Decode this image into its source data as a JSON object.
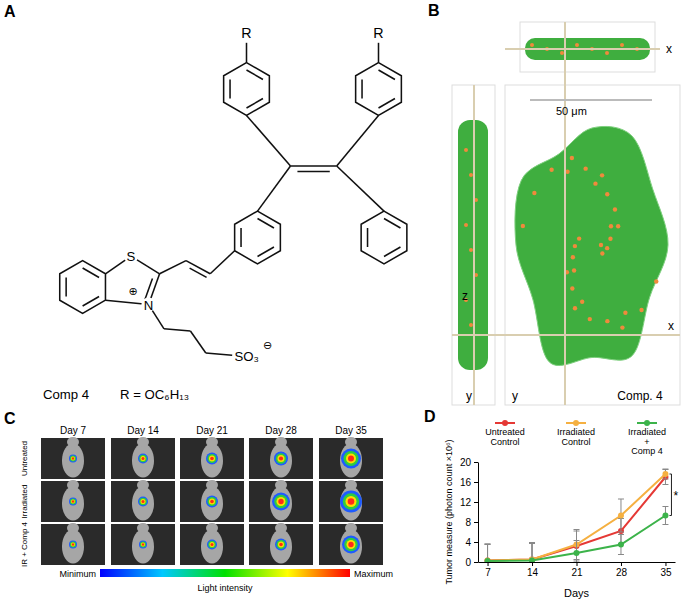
{
  "panels": {
    "a": {
      "label": "A",
      "r_labels": [
        "R",
        "R"
      ],
      "sulfur": "S",
      "nitrogen": "N",
      "cation_charge": "⊕",
      "sulfonate": "SO₃",
      "anion_charge": "⊖",
      "compound": "Comp 4",
      "substituent": "R = OC₆H₁₃"
    },
    "b": {
      "label": "B",
      "top_view_axis": "x",
      "side_view_axes": [
        "z",
        "y"
      ],
      "main_axes": [
        "y",
        "x"
      ],
      "scale_bar": "50 μm",
      "caption": "Comp. 4"
    },
    "c": {
      "label": "C",
      "days": [
        "Day 7",
        "Day 14",
        "Day 21",
        "Day 28",
        "Day 35"
      ],
      "rows": [
        "Untreated",
        "Irradiated",
        "IR + Comp 4"
      ],
      "colorbar_min": "Minimum",
      "colorbar_max": "Maximum",
      "colorbar_title": "Light intensity"
    },
    "d": {
      "label": "D"
    }
  },
  "chart_data": {
    "type": "line",
    "xlabel": "Days",
    "ylabel": "Tumor measure (photon count ×10⁶)",
    "x": [
      7,
      14,
      21,
      28,
      35
    ],
    "xlim": [
      5.5,
      36.5
    ],
    "xticks": [
      7,
      14,
      21,
      28,
      35
    ],
    "ylim": [
      0,
      20
    ],
    "yticks": [
      0,
      4,
      8,
      12,
      16,
      20
    ],
    "grid": false,
    "legend": "top",
    "marker": "circle",
    "series": [
      {
        "name": "Untreated Control",
        "color": "#e53935",
        "values": [
          0.3,
          0.5,
          3.2,
          6.2,
          17.0
        ],
        "errors": [
          3.3,
          3.4,
          3.0,
          2.5,
          1.5
        ]
      },
      {
        "name": "Irradiated Control",
        "color": "#f5b041",
        "values": [
          0.3,
          0.5,
          3.5,
          9.3,
          17.6
        ],
        "errors": [
          3.3,
          3.4,
          3.0,
          3.3,
          1.0
        ]
      },
      {
        "name": "Irradiated + Comp 4",
        "color": "#3cb34a",
        "values": [
          0.2,
          0.3,
          1.8,
          3.5,
          9.3
        ],
        "errors": [
          3.3,
          3.4,
          2.5,
          2.0,
          1.8
        ]
      }
    ],
    "annotations": [
      {
        "text": "*",
        "x": 35
      }
    ]
  }
}
